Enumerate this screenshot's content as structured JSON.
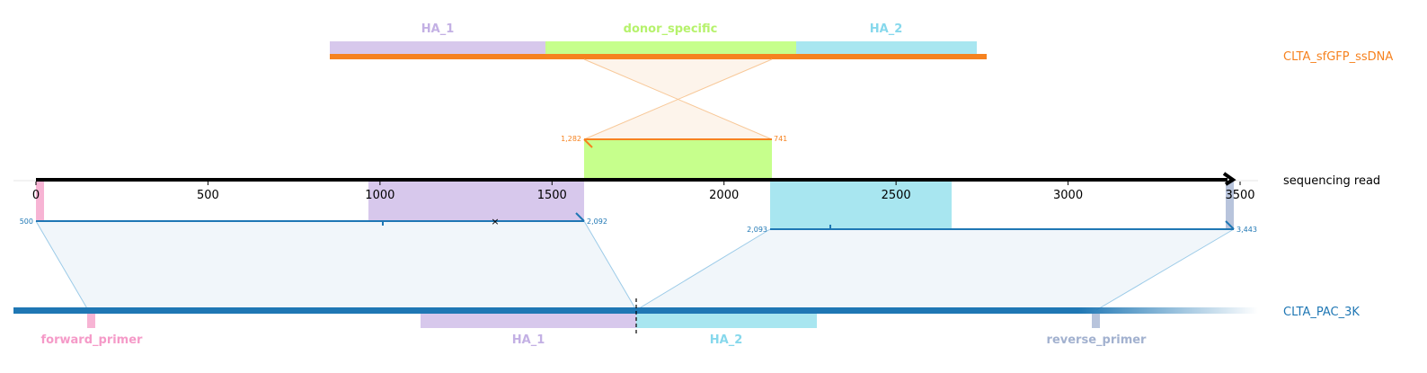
{
  "colors": {
    "ha1": "#d7c8ec",
    "ha1_text": "#c3b0e4",
    "donor": "#c6ff8c",
    "donor_text": "#b6f26c",
    "ha2": "#a8e6f0",
    "ha2_text": "#86d8ec",
    "primer_fwd": "#f7b4d4",
    "primer_fwd_text": "#f59ac8",
    "primer_rev": "#b8c4dc",
    "primer_rev_text": "#a2b1cf",
    "orange": "#f6821f",
    "blue": "#1f77b4",
    "read": "#000000"
  },
  "tracks": {
    "donor": {
      "label": "CLTA_sfGFP_ssDNA"
    },
    "read": {
      "label": "sequencing read"
    },
    "reference": {
      "label": "CLTA_PAC_3K"
    }
  },
  "axis": {
    "ticks": [
      0,
      500,
      1000,
      1500,
      2000,
      2500,
      3000,
      3500
    ],
    "range": [
      0,
      3500
    ]
  },
  "donor_features": [
    {
      "key": "ha1",
      "label": "HA_1"
    },
    {
      "key": "donor",
      "label": "donor_specific"
    },
    {
      "key": "ha2",
      "label": "HA_2"
    }
  ],
  "reference_features": [
    {
      "key": "primer_fwd",
      "label": "forward_primer"
    },
    {
      "key": "ha1",
      "label": "HA_1"
    },
    {
      "key": "ha2",
      "label": "HA_2"
    },
    {
      "key": "primer_rev",
      "label": "reverse_primer"
    }
  ],
  "alignments": {
    "donor_alignment": {
      "start_label": "1,282",
      "end_label": "741"
    },
    "ref_alignment_1": {
      "start_label": "500",
      "end_label": "2,092"
    },
    "ref_alignment_2": {
      "start_label": "2,093",
      "end_label": "3,443"
    }
  }
}
